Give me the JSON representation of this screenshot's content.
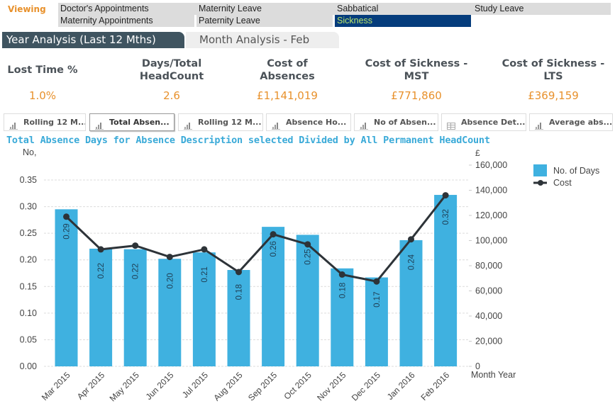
{
  "viewing": {
    "label": "Viewing",
    "filters_row1": [
      "Doctor's Appointments",
      "Maternity Leave",
      "Sabbatical",
      "Study Leave"
    ],
    "filters_row2": [
      "Maternity Appointments",
      "Paternity Leave",
      "Sickness"
    ],
    "selected": "Sickness"
  },
  "tabs": [
    {
      "label": "Year Analysis (Last 12 Mths)",
      "active": true
    },
    {
      "label": "Month Analysis - Feb",
      "active": false
    }
  ],
  "kpis": [
    {
      "title": "Lost Time %",
      "value": "1.0%"
    },
    {
      "title": "Days/Total HeadCount",
      "value": "2.6"
    },
    {
      "title": "Cost of Absences",
      "value": "£1,141,019"
    },
    {
      "title": "Cost of Sickness - MST",
      "value": "£771,860"
    },
    {
      "title": "Cost of Sickness - LTS",
      "value": "£369,159"
    }
  ],
  "chart_tabs": [
    {
      "label": "Rolling 12 M...",
      "icon": "bar-chart-icon",
      "active": false
    },
    {
      "label": "Total Absen...",
      "icon": "bar-chart-icon",
      "active": true
    },
    {
      "label": "Rolling 12 M...",
      "icon": "bar-chart-icon",
      "active": false
    },
    {
      "label": "Absence Ho...",
      "icon": "bar-chart-icon",
      "active": false
    },
    {
      "label": "No of Absen...",
      "icon": "bar-chart-icon",
      "active": false
    },
    {
      "label": "Absence Det...",
      "icon": "table-icon",
      "active": false
    },
    {
      "label": "Average abs...",
      "icon": "bar-chart-icon",
      "active": false
    }
  ],
  "colors": {
    "accent_orange": "#e8912c",
    "bar_blue": "#3fb1e0",
    "line_dark": "#2d3338",
    "title_blue": "#3aaad8",
    "selected_bg": "#053c7c",
    "selected_text": "#b8e36a",
    "tab_active": "#3f5460"
  },
  "chart_data": {
    "type": "bar",
    "title": "Total Absence Days for Absence Description selected Divided by All Permanent HeadCount",
    "xlabel": "Month Year",
    "ylabel": "No,",
    "y2label": "£",
    "categories": [
      "Mar 2015",
      "Apr 2015",
      "May 2015",
      "Jun 2015",
      "Jul 2015",
      "Aug 2015",
      "Sep 2015",
      "Oct 2015",
      "Nov 2015",
      "Dec 2015",
      "Jan 2016",
      "Feb 2016"
    ],
    "series": [
      {
        "name": "No. of Days",
        "type": "bar",
        "axis": "left",
        "values": [
          0.295,
          0.221,
          0.22,
          0.202,
          0.214,
          0.181,
          0.262,
          0.247,
          0.184,
          0.167,
          0.237,
          0.322
        ],
        "labels": [
          "0.29",
          "0.22",
          "0.22",
          "0.20",
          "0.21",
          "0.18",
          "0.26",
          "0.25",
          "0.18",
          "0.17",
          "0.24",
          "0.32"
        ]
      },
      {
        "name": "Cost",
        "type": "line",
        "axis": "right",
        "values": [
          119000,
          93000,
          96000,
          87000,
          93000,
          75000,
          105000,
          97000,
          73000,
          67500,
          101000,
          136000
        ]
      }
    ],
    "ylim": [
      0,
      0.35
    ],
    "yticks": [
      "0.00",
      "0.05",
      "0.10",
      "0.15",
      "0.20",
      "0.25",
      "0.30",
      "0.35"
    ],
    "y2lim": [
      0,
      160000
    ],
    "y2ticks": [
      "0",
      "20,000",
      "40,000",
      "60,000",
      "80,000",
      "100,000",
      "120,000",
      "140,000",
      "160,000"
    ],
    "grid": true,
    "legend": "top-right"
  }
}
